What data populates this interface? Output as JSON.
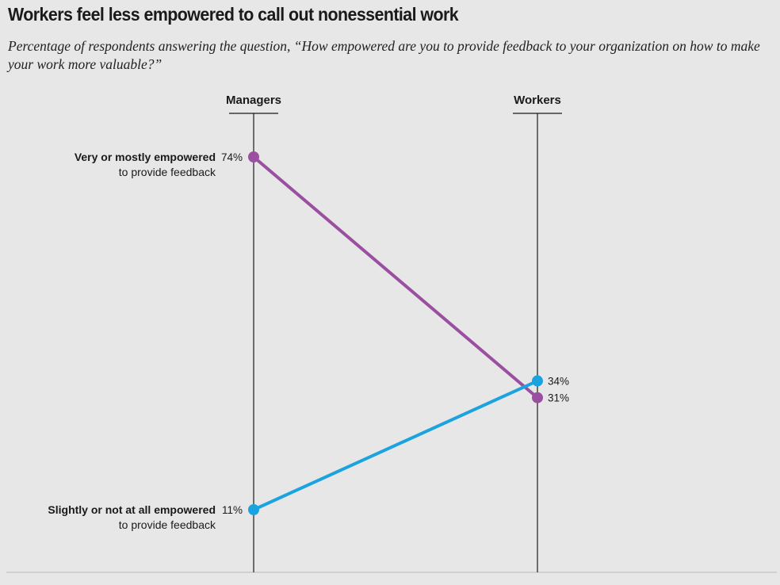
{
  "title": "Workers feel less empowered to call out nonessential work",
  "subtitle": "Percentage of respondents answering the question, “How empowered are you to provide feedback to your organization on how to make your work more valuable?”",
  "colors": {
    "empowered": "#9b4fa0",
    "not_empowered": "#1ba3e0",
    "background": "#e6e7e6",
    "axis": "#1a1a1a"
  },
  "chart_data": {
    "type": "line",
    "chart_style": "slope",
    "columns": [
      "Managers",
      "Workers"
    ],
    "value_range": [
      0,
      100
    ],
    "series": [
      {
        "name": "Very or mostly empowered to provide feedback",
        "label_line1": "Very or mostly empowered",
        "label_line2": "to provide feedback",
        "values": [
          74,
          31
        ],
        "value_labels": [
          "74%",
          "31%"
        ],
        "color": "#9b4fa0"
      },
      {
        "name": "Slightly or not at all empowered to provide feedback",
        "label_line1": "Slightly or not at all empowered",
        "label_line2": "to provide feedback",
        "values": [
          11,
          34
        ],
        "value_labels": [
          "11%",
          "34%"
        ],
        "color": "#1ba3e0"
      }
    ]
  }
}
